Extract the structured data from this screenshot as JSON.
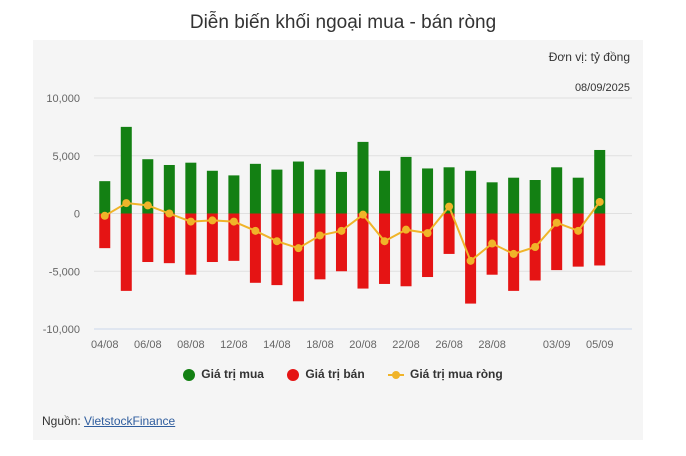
{
  "title": "Diễn biến khối ngoại mua - bán ròng",
  "unit_label": "Đơn vị: tỷ đồng",
  "date_label": "08/09/2025",
  "source": {
    "prefix": "Nguồn: ",
    "link_text": "VietstockFinance"
  },
  "colors": {
    "buy": "#138013",
    "sell": "#e51414",
    "net": "#f0b429",
    "grid": "#e0e0e0",
    "axis": "#ccd6eb",
    "text": "#666666"
  },
  "legend": [
    {
      "label": "Giá trị mua",
      "color": "#138013",
      "kind": "dot"
    },
    {
      "label": "Giá trị bán",
      "color": "#e51414",
      "kind": "dot"
    },
    {
      "label": "Giá trị mua ròng",
      "color": "#f0b429",
      "kind": "line"
    }
  ],
  "chart_data": {
    "type": "bar",
    "x": [
      "04/08",
      "05/08",
      "06/08",
      "07/08",
      "08/08",
      "11/08",
      "12/08",
      "13/08",
      "14/08",
      "15/08",
      "18/08",
      "19/08",
      "20/08",
      "21/08",
      "22/08",
      "25/08",
      "26/08",
      "27/08",
      "28/08",
      "29/08",
      "02/09",
      "03/09",
      "04/09",
      "05/09",
      "08/09"
    ],
    "x_tick_labels": [
      "04/08",
      "06/08",
      "08/08",
      "12/08",
      "14/08",
      "18/08",
      "20/08",
      "22/08",
      "26/08",
      "28/08",
      "03/09",
      "05/09"
    ],
    "y_tick_labels": [
      "10,000",
      "5,000",
      "0",
      "-5,000",
      "-10,000"
    ],
    "ylim": [
      -10000,
      10000
    ],
    "series": [
      {
        "name": "Giá trị mua",
        "type": "bar",
        "values": [
          2800,
          7500,
          4700,
          4200,
          4400,
          3700,
          3300,
          4300,
          3800,
          4500,
          3800,
          3600,
          6200,
          3700,
          4900,
          3900,
          4000,
          3700,
          2700,
          3100,
          2900,
          4000,
          3100,
          5500,
          0
        ]
      },
      {
        "name": "Giá trị bán",
        "type": "bar",
        "values": [
          -3000,
          -6700,
          -4200,
          -4300,
          -5300,
          -4200,
          -4100,
          -6000,
          -6200,
          -7600,
          -5700,
          -5000,
          -6500,
          -6100,
          -6300,
          -5500,
          -3500,
          -7800,
          -5300,
          -6700,
          -5800,
          -4900,
          -4600,
          -4500,
          0
        ]
      },
      {
        "name": "Giá trị mua ròng",
        "type": "line",
        "values": [
          -200,
          900,
          700,
          0,
          -700,
          -600,
          -700,
          -1500,
          -2400,
          -3000,
          -1900,
          -1500,
          -100,
          -2400,
          -1400,
          -1700,
          600,
          -4100,
          -2600,
          -3500,
          -2900,
          -800,
          -1500,
          1000,
          null
        ]
      }
    ]
  }
}
